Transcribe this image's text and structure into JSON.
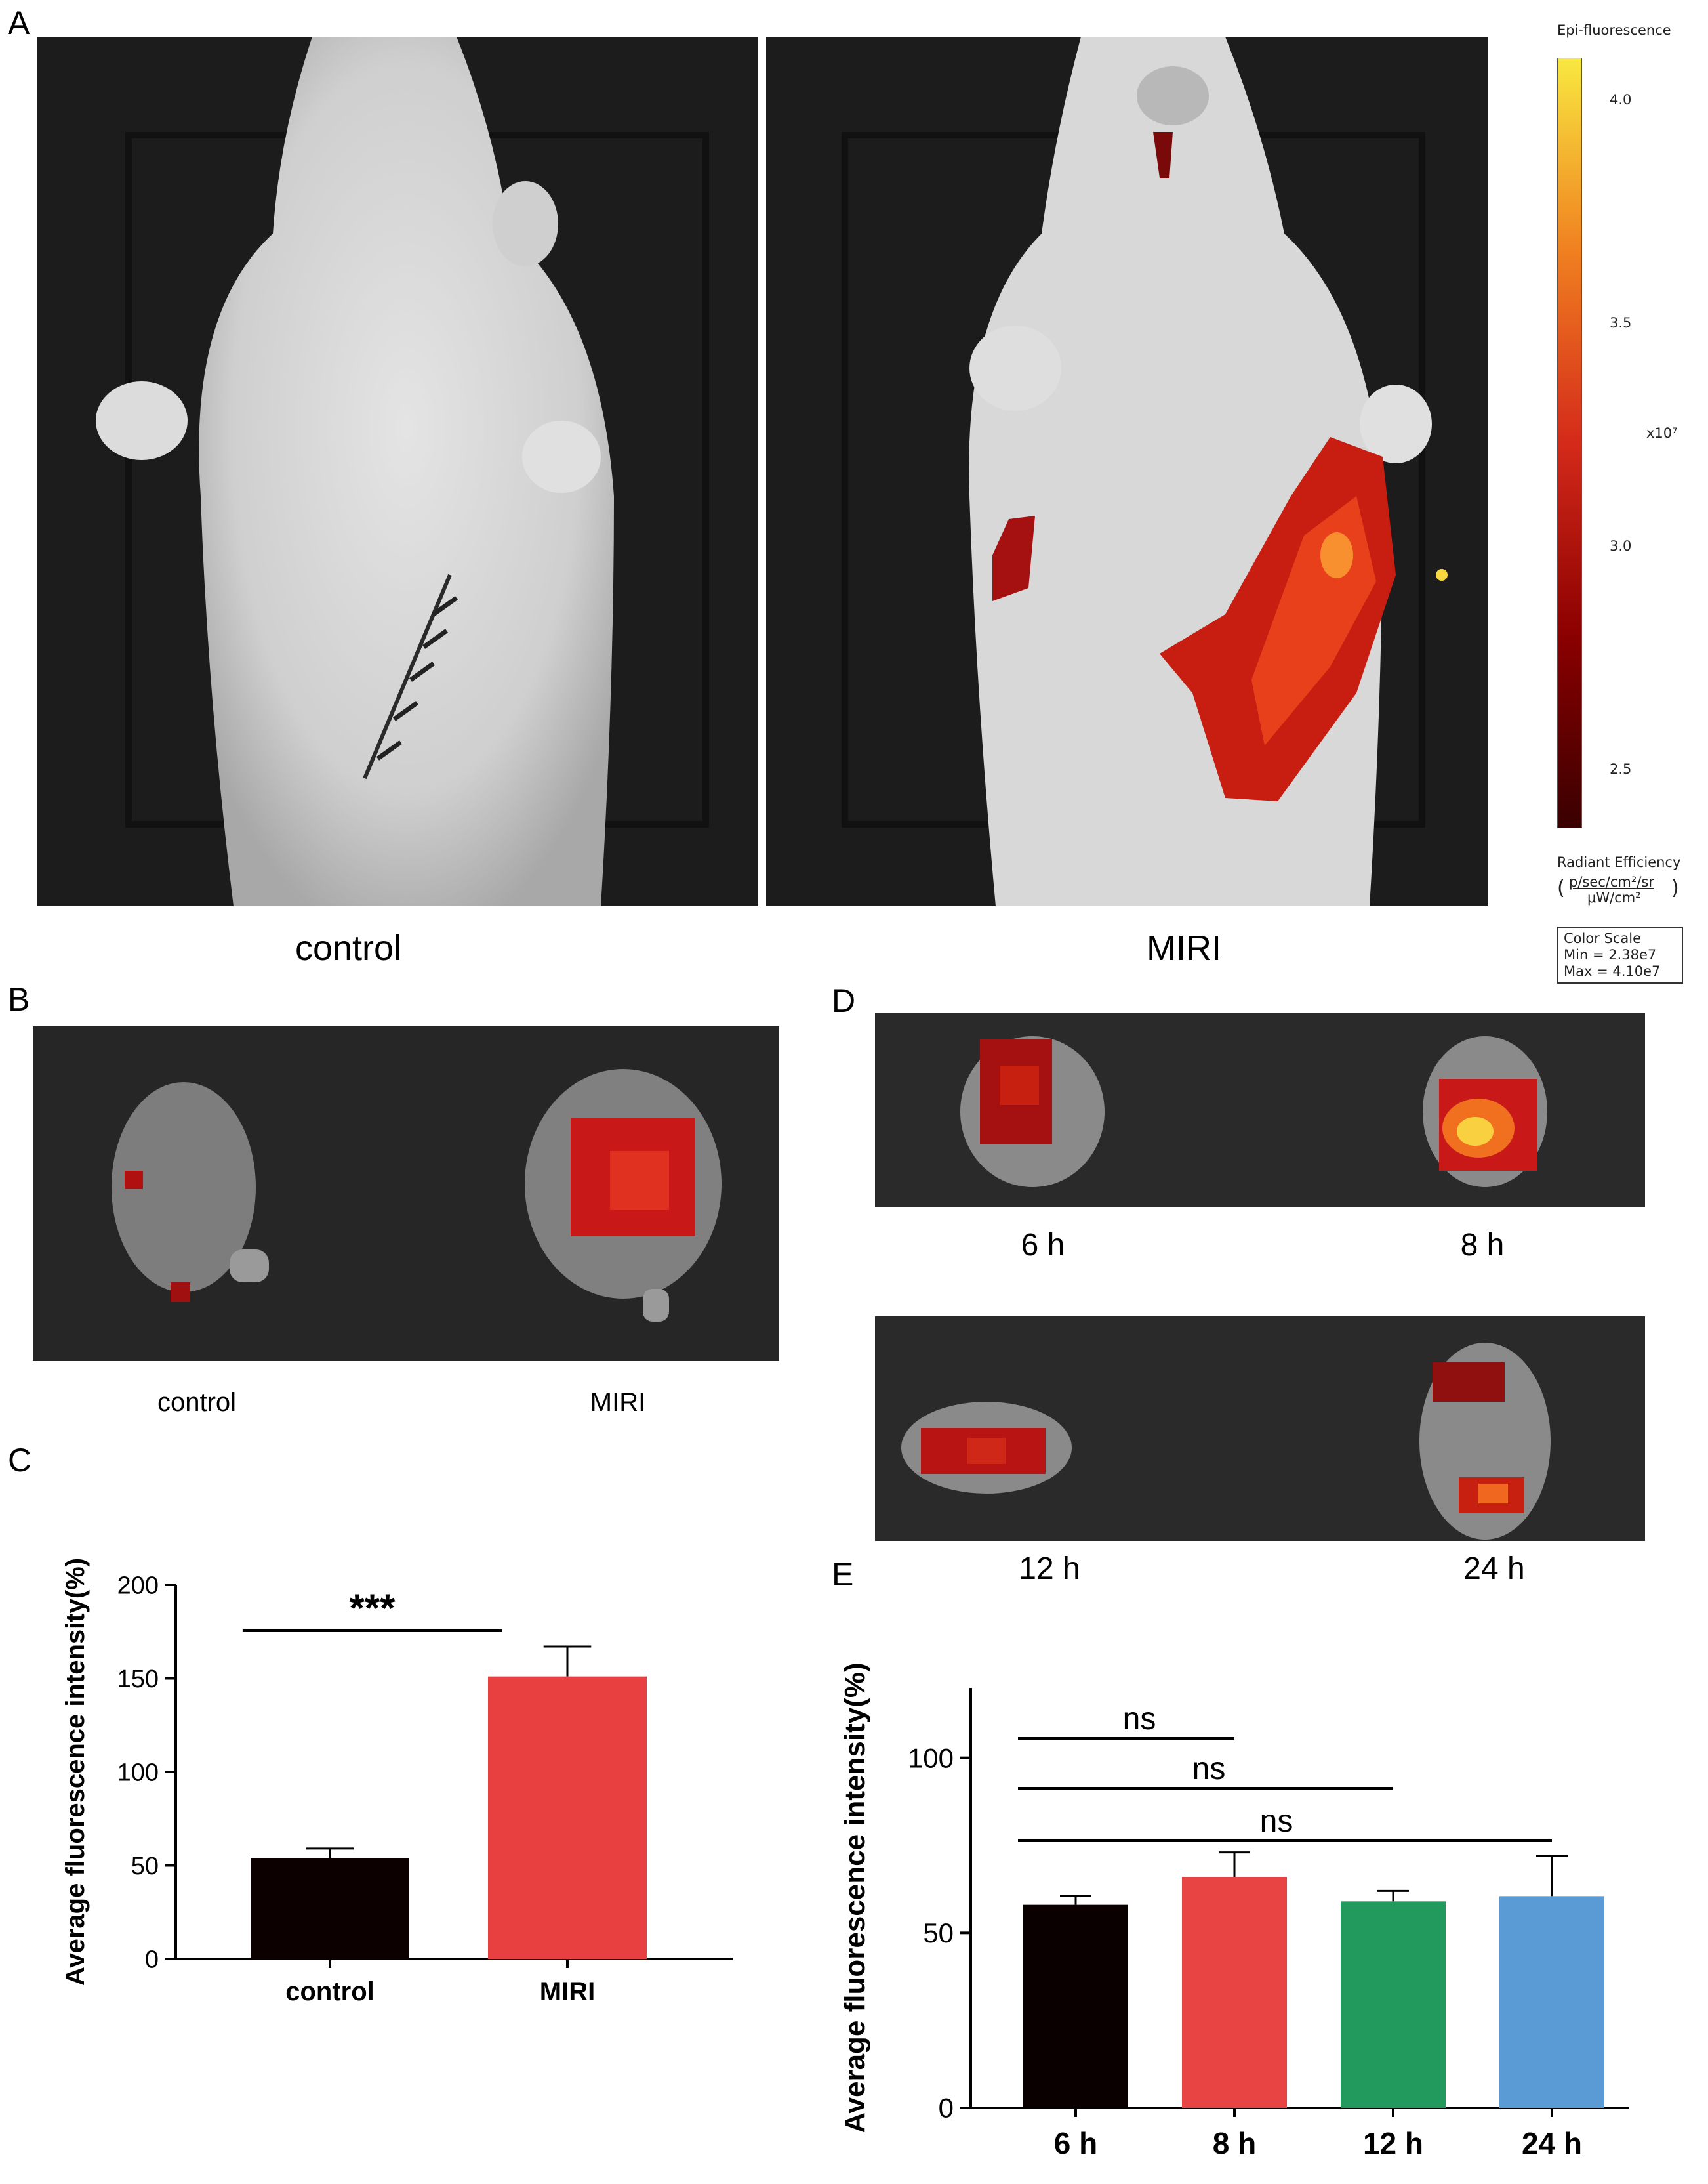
{
  "figure": {
    "panels": {
      "A": "A",
      "B": "B",
      "C": "C",
      "D": "D",
      "E": "E"
    },
    "panel_a": {
      "left_label": "control",
      "right_label": "MIRI",
      "colorbar": {
        "title": "Epi-fluorescence",
        "ticks": [
          "4.0",
          "3.5",
          "3.0",
          "2.5"
        ],
        "multiplier": "x10⁷",
        "units_title": "Radiant Efficiency",
        "units_numerator": "p/sec/cm²/sr",
        "units_denominator": "μW/cm²",
        "scale_title": "Color Scale",
        "scale_min": "Min = 2.38e7",
        "scale_max": "Max = 4.10e7",
        "colors": [
          "#3a0000",
          "#8b0000",
          "#d42a1a",
          "#f08020",
          "#f8e840"
        ]
      }
    },
    "panel_b": {
      "left_label": "control",
      "right_label": "MIRI"
    },
    "panel_d": {
      "labels": [
        "6 h",
        "8 h",
        "12 h",
        "24 h"
      ]
    }
  },
  "chart_data": [
    {
      "panel": "C",
      "type": "bar",
      "categories": [
        "control",
        "MIRI"
      ],
      "values": [
        54,
        151
      ],
      "errors": [
        5,
        16
      ],
      "colors": [
        "#0d0000",
        "#e84040"
      ],
      "ylabel": "Average fluorescence intensity(%)",
      "ylim": [
        0,
        200
      ],
      "yticks": [
        0,
        50,
        100,
        150,
        200
      ],
      "significance": [
        {
          "from": 0,
          "to": 1,
          "label": "***"
        }
      ]
    },
    {
      "panel": "E",
      "type": "bar",
      "categories": [
        "6 h",
        "8 h",
        "12 h",
        "24 h"
      ],
      "values": [
        58,
        66,
        59,
        60.5
      ],
      "errors": [
        2.5,
        7,
        3,
        11.5
      ],
      "colors": [
        "#0a0000",
        "#e84444",
        "#229a5e",
        "#5b9bd5"
      ],
      "ylabel": "Average fluorescence intensity(%)",
      "ylim": [
        0,
        120
      ],
      "yticks": [
        0,
        50,
        100
      ],
      "significance": [
        {
          "from": 0,
          "to": 1,
          "label": "ns"
        },
        {
          "from": 0,
          "to": 2,
          "label": "ns"
        },
        {
          "from": 0,
          "to": 3,
          "label": "ns"
        }
      ]
    }
  ]
}
